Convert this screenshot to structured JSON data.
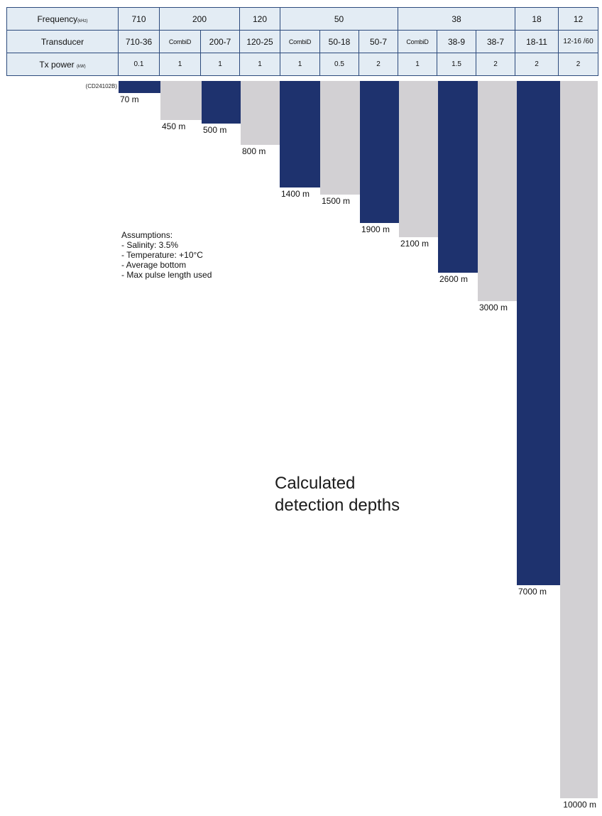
{
  "table": {
    "row_labels": {
      "frequency": "Frequency",
      "frequency_unit": "(kHz)",
      "transducer": "Transducer",
      "power": "Tx power",
      "power_unit": "(kW)"
    },
    "frequencies": [
      "710",
      "200",
      "120",
      "50",
      "38",
      "18",
      "12"
    ],
    "transducers": [
      "710-36",
      "CombiD",
      "200-7",
      "120-25",
      "CombiD",
      "50-18",
      "50-7",
      "CombiD",
      "38-9",
      "38-7",
      "18-11",
      "12-16 /60"
    ],
    "powers": [
      "0.1",
      "1",
      "1",
      "1",
      "1",
      "0.5",
      "2",
      "1",
      "1.5",
      "2",
      "2",
      "2"
    ]
  },
  "source_id": "(CD24102B)",
  "notes": {
    "heading": "Assumptions:",
    "items": [
      "- Salinity: 3.5%",
      "- Temperature: +10°C",
      "- Average bottom",
      "- Max pulse length used"
    ]
  },
  "title_lines": [
    "Calculated",
    "detection depths"
  ],
  "colors": {
    "dark": "#1e326e",
    "light": "#d2d0d3",
    "grid": "#2c4a7c",
    "header_bg": "#e3ecf4"
  },
  "chart_data": {
    "type": "bar",
    "orientation": "downward",
    "unit": "m",
    "categories": [
      "710-36",
      "CombiD",
      "200-7",
      "120-25",
      "CombiD",
      "50-18",
      "50-7",
      "CombiD",
      "38-9",
      "38-7",
      "18-11",
      "12-16/60"
    ],
    "values": [
      70,
      450,
      500,
      800,
      1400,
      1500,
      1900,
      2100,
      2600,
      3000,
      7000,
      10000
    ],
    "value_labels": [
      "70 m",
      "450 m",
      "500 m",
      "800 m",
      "1400 m",
      "1500 m",
      "1900 m",
      "2100 m",
      "2600 m",
      "3000 m",
      "7000 m",
      "10000 m"
    ],
    "shades": [
      "dark",
      "light",
      "dark",
      "light",
      "dark",
      "light",
      "dark",
      "light",
      "dark",
      "light",
      "dark",
      "light"
    ],
    "ylim": [
      0,
      10000
    ],
    "grid": false,
    "legend": "none"
  }
}
